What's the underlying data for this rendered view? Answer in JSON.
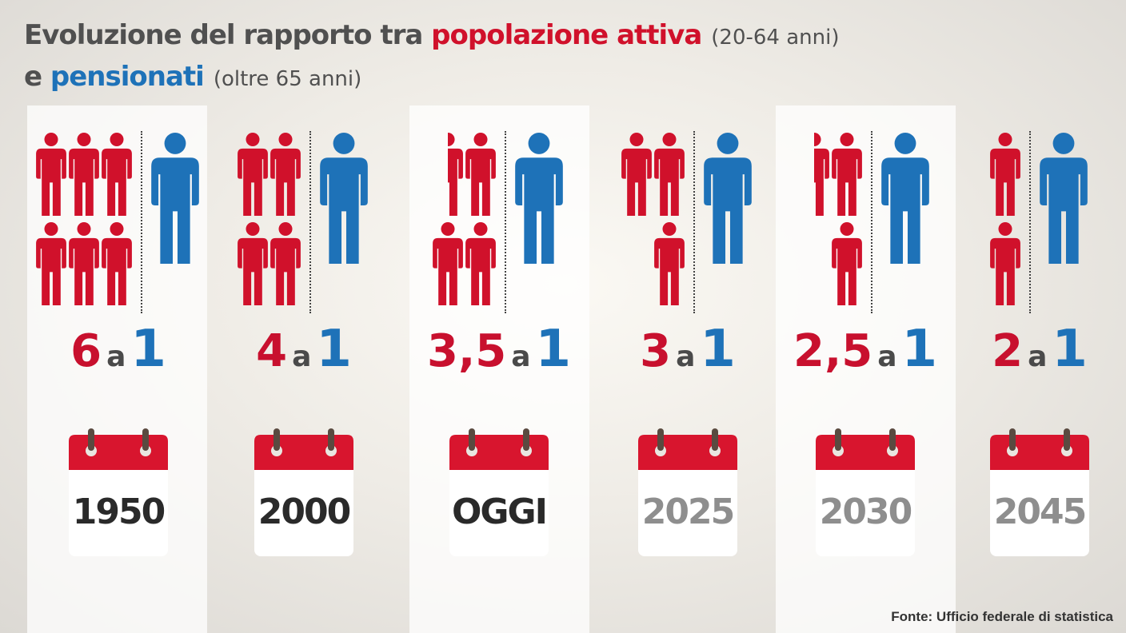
{
  "title": {
    "line1_prefix": "Evoluzione del rapporto tra ",
    "line1_highlight": "popolazione attiva",
    "line1_paren": "(20-64 anni)",
    "line2_prefix": "e ",
    "line2_highlight": "pensionati",
    "line2_paren": "(oltre 65 anni)"
  },
  "source": "Fonte: Ufficio federale di statistica",
  "colors": {
    "workers": "#d0112b",
    "pensioners": "#1e72b8",
    "past_year_text": "#2a2a2a",
    "future_year_text": "#8e8e8e"
  },
  "icons": {
    "worker": "person-icon",
    "pensioner": "person-icon",
    "year": "calendar-icon"
  },
  "chart_data": {
    "type": "pictogram",
    "categories": [
      "1950",
      "2000",
      "OGGI",
      "2025",
      "2030",
      "2045"
    ],
    "series": [
      {
        "name": "popolazione attiva",
        "values": [
          6,
          4,
          3.5,
          3,
          2.5,
          2
        ]
      },
      {
        "name": "pensionati",
        "values": [
          1,
          1,
          1,
          1,
          1,
          1
        ]
      }
    ],
    "labels": [
      {
        "workers": "6",
        "connector": "a",
        "pensioners": "1"
      },
      {
        "workers": "4",
        "connector": "a",
        "pensioners": "1"
      },
      {
        "workers": "3,5",
        "connector": "a",
        "pensioners": "1"
      },
      {
        "workers": "3",
        "connector": "a",
        "pensioners": "1"
      },
      {
        "workers": "2,5",
        "connector": "a",
        "pensioners": "1"
      },
      {
        "workers": "2",
        "connector": "a",
        "pensioners": "1"
      }
    ],
    "projected": [
      false,
      false,
      false,
      true,
      true,
      true
    ]
  }
}
